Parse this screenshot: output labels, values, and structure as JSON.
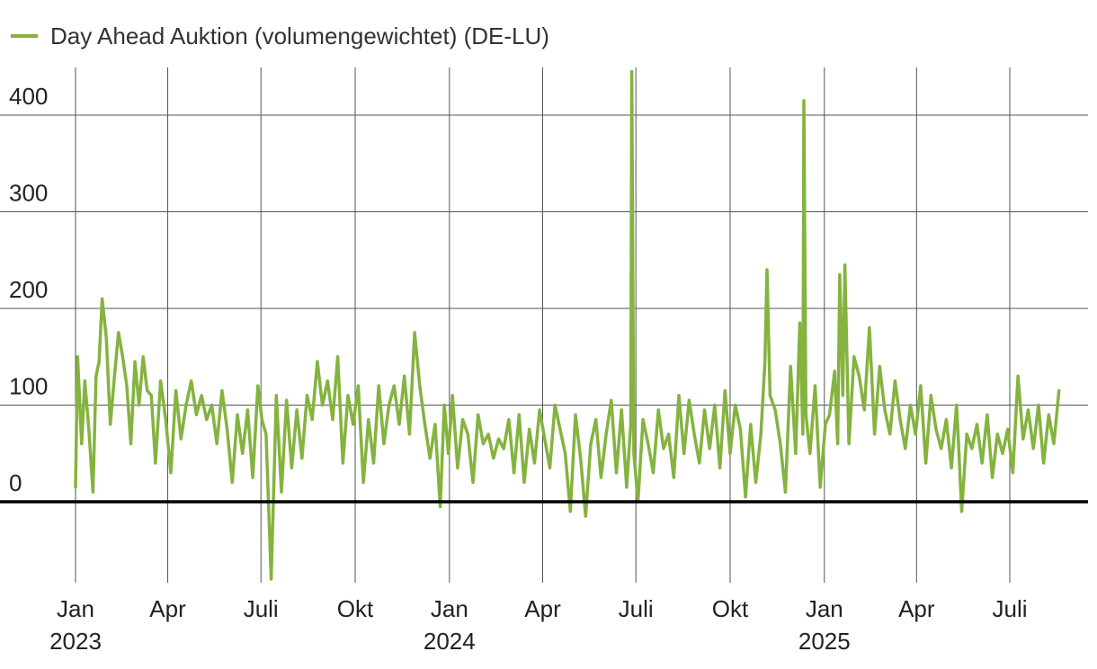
{
  "legend": {
    "label": "Day Ahead Auktion (volumengewichtet) (DE-LU)"
  },
  "colors": {
    "series": "#84b33f",
    "grid": "#555555",
    "zero": "#000000",
    "text": "#222222"
  },
  "chart_data": {
    "type": "line",
    "title": "",
    "xlabel": "",
    "ylabel": "",
    "ylim": [
      -80,
      450
    ],
    "yticks": [
      0,
      100,
      200,
      300,
      400
    ],
    "ytick_labels": [
      "0",
      "100",
      "200",
      "300",
      "400"
    ],
    "xlim": [
      "2023-01-01",
      "2025-09-01"
    ],
    "xticks": [
      {
        "date": "2023-01-01",
        "label": "Jan",
        "year": "2023"
      },
      {
        "date": "2023-04-01",
        "label": "Apr",
        "year": ""
      },
      {
        "date": "2023-07-01",
        "label": "Juli",
        "year": ""
      },
      {
        "date": "2023-10-01",
        "label": "Okt",
        "year": ""
      },
      {
        "date": "2024-01-01",
        "label": "Jan",
        "year": "2024"
      },
      {
        "date": "2024-04-01",
        "label": "Apr",
        "year": ""
      },
      {
        "date": "2024-07-01",
        "label": "Juli",
        "year": ""
      },
      {
        "date": "2024-10-01",
        "label": "Okt",
        "year": ""
      },
      {
        "date": "2025-01-01",
        "label": "Jan",
        "year": "2025"
      },
      {
        "date": "2025-04-01",
        "label": "Apr",
        "year": ""
      },
      {
        "date": "2025-07-01",
        "label": "Juli",
        "year": ""
      }
    ],
    "series": [
      {
        "name": "Day Ahead Auktion (volumengewichtet) (DE-LU)",
        "x": [
          "2023-01-01",
          "2023-01-03",
          "2023-01-07",
          "2023-01-10",
          "2023-01-14",
          "2023-01-18",
          "2023-01-21",
          "2023-01-24",
          "2023-01-27",
          "2023-01-31",
          "2023-02-04",
          "2023-02-08",
          "2023-02-12",
          "2023-02-16",
          "2023-02-20",
          "2023-02-24",
          "2023-02-28",
          "2023-03-04",
          "2023-03-08",
          "2023-03-12",
          "2023-03-16",
          "2023-03-20",
          "2023-03-25",
          "2023-03-30",
          "2023-04-04",
          "2023-04-09",
          "2023-04-14",
          "2023-04-19",
          "2023-04-24",
          "2023-04-29",
          "2023-05-04",
          "2023-05-09",
          "2023-05-14",
          "2023-05-19",
          "2023-05-24",
          "2023-05-29",
          "2023-06-03",
          "2023-06-08",
          "2023-06-13",
          "2023-06-18",
          "2023-06-23",
          "2023-06-28",
          "2023-07-02",
          "2023-07-06",
          "2023-07-11",
          "2023-07-16",
          "2023-07-21",
          "2023-07-26",
          "2023-07-31",
          "2023-08-05",
          "2023-08-10",
          "2023-08-15",
          "2023-08-20",
          "2023-08-25",
          "2023-08-30",
          "2023-09-04",
          "2023-09-09",
          "2023-09-14",
          "2023-09-19",
          "2023-09-24",
          "2023-09-29",
          "2023-10-04",
          "2023-10-09",
          "2023-10-14",
          "2023-10-19",
          "2023-10-24",
          "2023-10-29",
          "2023-11-03",
          "2023-11-08",
          "2023-11-13",
          "2023-11-18",
          "2023-11-23",
          "2023-11-28",
          "2023-12-03",
          "2023-12-08",
          "2023-12-13",
          "2023-12-18",
          "2023-12-23",
          "2023-12-27",
          "2023-12-31",
          "2024-01-04",
          "2024-01-09",
          "2024-01-14",
          "2024-01-19",
          "2024-01-24",
          "2024-01-29",
          "2024-02-03",
          "2024-02-08",
          "2024-02-13",
          "2024-02-18",
          "2024-02-23",
          "2024-02-28",
          "2024-03-04",
          "2024-03-09",
          "2024-03-14",
          "2024-03-19",
          "2024-03-24",
          "2024-03-29",
          "2024-04-03",
          "2024-04-08",
          "2024-04-13",
          "2024-04-18",
          "2024-04-23",
          "2024-04-28",
          "2024-05-03",
          "2024-05-08",
          "2024-05-13",
          "2024-05-18",
          "2024-05-23",
          "2024-05-28",
          "2024-06-02",
          "2024-06-07",
          "2024-06-12",
          "2024-06-17",
          "2024-06-22",
          "2024-06-26",
          "2024-06-27",
          "2024-06-29",
          "2024-07-03",
          "2024-07-08",
          "2024-07-13",
          "2024-07-18",
          "2024-07-23",
          "2024-07-28",
          "2024-08-02",
          "2024-08-07",
          "2024-08-12",
          "2024-08-17",
          "2024-08-22",
          "2024-08-27",
          "2024-09-01",
          "2024-09-06",
          "2024-09-11",
          "2024-09-16",
          "2024-09-21",
          "2024-09-26",
          "2024-10-01",
          "2024-10-06",
          "2024-10-11",
          "2024-10-16",
          "2024-10-21",
          "2024-10-26",
          "2024-10-31",
          "2024-11-04",
          "2024-11-06",
          "2024-11-09",
          "2024-11-14",
          "2024-11-19",
          "2024-11-24",
          "2024-11-29",
          "2024-12-04",
          "2024-12-08",
          "2024-12-11",
          "2024-12-12",
          "2024-12-14",
          "2024-12-18",
          "2024-12-23",
          "2024-12-28",
          "2025-01-02",
          "2025-01-06",
          "2025-01-11",
          "2025-01-14",
          "2025-01-16",
          "2025-01-19",
          "2025-01-21",
          "2025-01-25",
          "2025-01-30",
          "2025-02-04",
          "2025-02-09",
          "2025-02-14",
          "2025-02-19",
          "2025-02-24",
          "2025-03-01",
          "2025-03-06",
          "2025-03-11",
          "2025-03-16",
          "2025-03-21",
          "2025-03-26",
          "2025-03-31",
          "2025-04-05",
          "2025-04-10",
          "2025-04-15",
          "2025-04-20",
          "2025-04-25",
          "2025-04-30",
          "2025-05-05",
          "2025-05-10",
          "2025-05-12",
          "2025-05-15",
          "2025-05-20",
          "2025-05-25",
          "2025-05-30",
          "2025-06-04",
          "2025-06-09",
          "2025-06-14",
          "2025-06-19",
          "2025-06-24",
          "2025-06-29",
          "2025-07-04",
          "2025-07-09",
          "2025-07-14",
          "2025-07-19",
          "2025-07-24",
          "2025-07-29",
          "2025-08-03",
          "2025-08-08",
          "2025-08-13",
          "2025-08-18"
        ],
        "values": [
          15,
          150,
          60,
          125,
          75,
          10,
          130,
          145,
          210,
          170,
          80,
          130,
          175,
          150,
          120,
          60,
          145,
          100,
          150,
          115,
          110,
          40,
          125,
          85,
          30,
          115,
          65,
          100,
          125,
          90,
          110,
          85,
          100,
          60,
          115,
          75,
          20,
          90,
          50,
          95,
          25,
          120,
          85,
          70,
          -80,
          110,
          10,
          105,
          35,
          95,
          45,
          110,
          85,
          145,
          100,
          125,
          85,
          150,
          40,
          110,
          80,
          120,
          20,
          85,
          40,
          120,
          60,
          100,
          120,
          80,
          130,
          70,
          175,
          120,
          80,
          45,
          80,
          -5,
          100,
          50,
          110,
          35,
          85,
          70,
          20,
          90,
          60,
          70,
          45,
          65,
          55,
          85,
          30,
          90,
          20,
          75,
          40,
          95,
          65,
          35,
          100,
          75,
          50,
          -10,
          90,
          45,
          -15,
          60,
          85,
          25,
          70,
          105,
          30,
          95,
          15,
          80,
          445,
          50,
          0,
          85,
          60,
          30,
          95,
          55,
          70,
          25,
          110,
          50,
          105,
          70,
          40,
          95,
          55,
          100,
          35,
          115,
          50,
          100,
          75,
          5,
          80,
          20,
          70,
          145,
          240,
          110,
          95,
          60,
          10,
          140,
          50,
          185,
          70,
          415,
          90,
          50,
          120,
          15,
          80,
          90,
          135,
          60,
          235,
          110,
          245,
          60,
          150,
          130,
          95,
          180,
          70,
          140,
          95,
          70,
          125,
          85,
          55,
          100,
          70,
          120,
          40,
          110,
          75,
          55,
          85,
          35,
          100,
          60,
          -10,
          70,
          55,
          80,
          40,
          90,
          25,
          70,
          50,
          75,
          30,
          130,
          65,
          95,
          55,
          100,
          40,
          90,
          60,
          115
        ]
      }
    ]
  }
}
